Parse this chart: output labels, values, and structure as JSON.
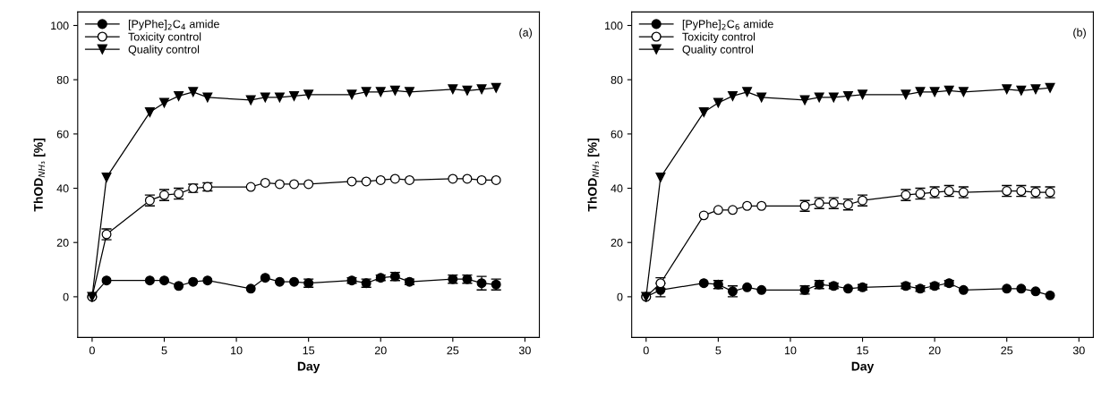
{
  "chart_data": [
    {
      "type": "line",
      "xlabel": "Day",
      "ylabel": "ThOD$_{NH₃}$ [%]",
      "annotations": [
        "(a)"
      ],
      "x": [
        0,
        1,
        4,
        5,
        6,
        7,
        8,
        11,
        12,
        13,
        14,
        15,
        18,
        19,
        20,
        21,
        22,
        25,
        26,
        27,
        28
      ],
      "xlim": [
        -1,
        31
      ],
      "xticks": [
        0,
        5,
        10,
        15,
        20,
        25,
        30
      ],
      "ylim": [
        -15,
        105
      ],
      "yticks": [
        0,
        20,
        40,
        60,
        80,
        100
      ],
      "grid": false,
      "legend": "top left",
      "line_style": "solid",
      "series": [
        {
          "name": "[PyPhe]$_{2}$C$_{4}$ amide",
          "color": "#000000",
          "marker": "circle",
          "values": [
            0,
            6,
            6,
            6,
            4,
            5.5,
            6,
            3,
            7,
            5.5,
            5.5,
            5,
            6,
            5,
            7,
            7.5,
            5.5,
            6.5,
            6.5,
            5,
            4.5
          ],
          "errors": [
            null,
            null,
            null,
            null,
            null,
            null,
            null,
            null,
            null,
            null,
            null,
            1.5,
            1,
            1.5,
            1,
            1.5,
            1,
            1.5,
            1.5,
            2.5,
            2
          ]
        },
        {
          "name": "Toxicity control",
          "color": "#ffffff",
          "marker": "circle",
          "values": [
            0,
            23,
            35.5,
            37.5,
            38,
            40,
            40.5,
            40.5,
            42,
            41.5,
            41.5,
            41.5,
            42.5,
            42.5,
            43,
            43.5,
            43,
            43.5,
            43.5,
            43,
            43
          ],
          "errors": [
            null,
            2,
            2,
            2,
            2,
            1.5,
            1.5,
            null,
            null,
            null,
            null,
            null,
            null,
            null,
            null,
            null,
            null,
            null,
            null,
            null,
            null
          ]
        },
        {
          "name": "Quality control",
          "color": "#000000",
          "marker": "triangle",
          "values": [
            0,
            44,
            68,
            71.5,
            74,
            75.5,
            73.5,
            72.5,
            73.5,
            73.5,
            74,
            74.5,
            74.5,
            75.5,
            75.5,
            76,
            75.5,
            76.5,
            76,
            76.5,
            77
          ]
        }
      ]
    },
    {
      "type": "line",
      "xlabel": "Day",
      "ylabel": "ThOD$_{NH₃}$ [%]",
      "annotations": [
        "(b)"
      ],
      "x": [
        0,
        1,
        4,
        5,
        6,
        7,
        8,
        11,
        12,
        13,
        14,
        15,
        18,
        19,
        20,
        21,
        22,
        25,
        26,
        27,
        28
      ],
      "xlim": [
        -1,
        31
      ],
      "xticks": [
        0,
        5,
        10,
        15,
        20,
        25,
        30
      ],
      "ylim": [
        -15,
        105
      ],
      "yticks": [
        0,
        20,
        40,
        60,
        80,
        100
      ],
      "grid": false,
      "legend": "top left",
      "line_style": "solid",
      "series": [
        {
          "name": "[PyPhe]$_{2}$C$_{6}$ amide",
          "color": "#000000",
          "marker": "circle",
          "values": [
            0,
            2.5,
            5,
            4.5,
            2,
            3.5,
            2.5,
            2.5,
            4.5,
            4,
            3,
            3.5,
            4,
            3,
            4,
            5,
            2.5,
            3,
            3,
            2,
            0.5
          ],
          "errors": [
            null,
            2.5,
            null,
            1.5,
            2,
            null,
            null,
            1.5,
            1.5,
            1,
            null,
            1,
            1,
            1,
            1,
            1,
            null,
            null,
            null,
            null,
            null
          ]
        },
        {
          "name": "Toxicity control",
          "color": "#ffffff",
          "marker": "circle",
          "values": [
            0,
            5,
            30,
            32,
            32,
            33.5,
            33.5,
            33.5,
            34.5,
            34.5,
            34,
            35.5,
            37.5,
            38,
            38.5,
            39,
            38.5,
            39,
            39,
            38.5,
            38.5
          ],
          "errors": [
            null,
            2,
            null,
            null,
            null,
            null,
            null,
            2,
            2,
            2,
            2,
            2,
            2,
            2,
            2,
            2,
            2,
            2,
            2,
            2,
            2
          ]
        },
        {
          "name": "Quality control",
          "color": "#000000",
          "marker": "triangle",
          "values": [
            0,
            44,
            68,
            71.5,
            74,
            75.5,
            73.5,
            72.5,
            73.5,
            73.5,
            74,
            74.5,
            74.5,
            75.5,
            75.5,
            76,
            75.5,
            76.5,
            76,
            76.5,
            77
          ]
        }
      ]
    }
  ]
}
